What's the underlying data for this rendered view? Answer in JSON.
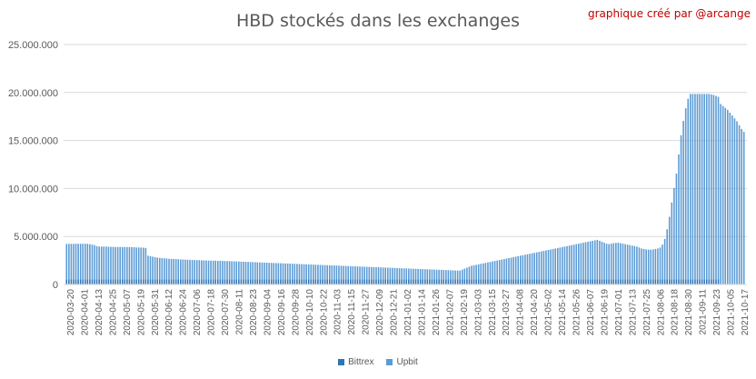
{
  "chart_data": {
    "type": "bar",
    "stacked": true,
    "title": "HBD stockés dans les exchanges",
    "credit": "graphique créé par @arcange",
    "ylim": [
      0,
      25000000
    ],
    "yticks": [
      "0",
      "5.000.000",
      "10.000.000",
      "15.000.000",
      "20.000.000",
      "25.000.000"
    ],
    "grid": true,
    "legend_position": "bottom",
    "x_tick_labels": [
      "2020-03-20",
      "2020-04-01",
      "2020-04-13",
      "2020-04-25",
      "2020-05-07",
      "2020-05-19",
      "2020-05-31",
      "2020-06-12",
      "2020-06-24",
      "2020-07-06",
      "2020-07-18",
      "2020-07-30",
      "2020-08-11",
      "2020-08-23",
      "2020-09-04",
      "2020-09-16",
      "2020-09-28",
      "2020-10-10",
      "2020-10-22",
      "2020-11-03",
      "2020-11-15",
      "2020-11-27",
      "2020-12-09",
      "2020-12-21",
      "2021-01-02",
      "2021-01-14",
      "2021-01-26",
      "2021-02-07",
      "2021-02-19",
      "2021-03-03",
      "2021-03-15",
      "2021-03-27",
      "2021-04-08",
      "2021-04-20",
      "2021-05-02",
      "2021-05-14",
      "2021-05-26",
      "2021-06-07",
      "2021-06-19",
      "2021-07-01",
      "2021-07-13",
      "2021-07-25",
      "2021-08-06",
      "2021-08-18",
      "2021-08-30",
      "2021-09-11",
      "2021-09-23",
      "2021-10-05",
      "2021-10-17"
    ],
    "series": [
      {
        "name": "Bittrex",
        "color": "#2e75b6",
        "values": [
          550000,
          550000,
          550000,
          550000,
          550000,
          550000,
          550000,
          550000,
          550000,
          550000,
          550000,
          550000,
          550000,
          550000,
          550000,
          550000,
          550000,
          550000,
          550000,
          550000,
          550000,
          550000,
          550000,
          550000,
          550000,
          550000,
          550000,
          550000,
          550000,
          550000,
          550000,
          550000,
          550000,
          550000,
          550000,
          550000,
          550000,
          550000,
          550000,
          550000,
          550000,
          550000,
          550000,
          550000,
          550000,
          550000,
          550000,
          550000,
          550000,
          550000,
          550000,
          550000,
          550000,
          550000,
          550000,
          550000,
          550000,
          550000,
          550000,
          550000,
          550000,
          550000,
          550000,
          550000,
          550000,
          550000,
          550000,
          550000,
          550000,
          550000,
          550000,
          550000,
          550000,
          550000,
          550000,
          550000,
          550000,
          550000,
          550000,
          550000,
          550000,
          550000,
          550000,
          550000,
          550000,
          550000,
          550000,
          550000,
          550000,
          550000,
          550000,
          550000,
          550000,
          550000,
          550000,
          550000,
          550000,
          550000,
          550000,
          550000,
          550000,
          550000,
          550000,
          550000,
          550000,
          550000,
          550000,
          550000,
          550000,
          550000,
          550000,
          550000,
          550000,
          550000,
          550000,
          550000,
          550000,
          550000,
          550000,
          550000,
          550000,
          550000,
          550000,
          550000,
          550000,
          550000,
          550000,
          550000,
          550000,
          550000,
          550000,
          550000,
          550000,
          550000,
          550000,
          550000,
          550000,
          550000,
          550000,
          550000,
          550000,
          550000,
          550000,
          550000,
          550000,
          550000,
          550000,
          550000,
          550000,
          550000,
          550000,
          550000,
          550000,
          550000,
          550000,
          550000,
          550000,
          550000,
          550000,
          550000,
          550000,
          550000,
          550000,
          550000,
          550000,
          550000,
          550000,
          550000,
          550000,
          550000,
          550000,
          550000,
          550000,
          550000,
          550000,
          550000,
          550000,
          550000,
          550000,
          550000,
          550000,
          550000,
          550000,
          550000,
          550000,
          550000,
          550000,
          550000,
          550000,
          550000,
          550000,
          550000,
          550000,
          550000,
          550000,
          550000,
          550000,
          550000,
          550000,
          550000,
          550000,
          550000,
          550000,
          550000,
          550000,
          550000,
          550000,
          550000,
          550000,
          550000,
          550000,
          550000,
          550000,
          550000,
          550000,
          550000,
          550000,
          550000,
          550000,
          550000,
          550000,
          550000,
          550000,
          550000,
          550000,
          550000,
          550000,
          550000,
          550000,
          550000,
          550000,
          550000,
          550000,
          550000,
          550000,
          550000,
          550000,
          550000,
          550000,
          550000,
          550000,
          550000,
          550000,
          550000,
          550000,
          550000,
          550000,
          550000,
          550000,
          550000,
          550000,
          550000,
          550000,
          550000,
          550000,
          550000,
          550000,
          550000,
          550000,
          550000,
          550000,
          550000,
          550000,
          550000,
          550000,
          550000,
          550000,
          550000,
          550000,
          550000,
          550000,
          550000,
          550000,
          550000,
          550000,
          550000,
          550000,
          550000,
          550000,
          550000,
          550000
        ]
      },
      {
        "name": "Upbit",
        "color": "#5b9bd5",
        "values": [
          3680000,
          3680000,
          3680000,
          3680000,
          3690000,
          3690000,
          3690000,
          3690000,
          3690000,
          3690000,
          3650000,
          3600000,
          3550000,
          3450000,
          3400000,
          3400000,
          3400000,
          3400000,
          3380000,
          3370000,
          3370000,
          3360000,
          3360000,
          3350000,
          3350000,
          3350000,
          3350000,
          3350000,
          3340000,
          3340000,
          3300000,
          3300000,
          3300000,
          3280000,
          3250000,
          2450000,
          2400000,
          2350000,
          2300000,
          2250000,
          2220000,
          2200000,
          2180000,
          2150000,
          2130000,
          2120000,
          2110000,
          2100000,
          2080000,
          2060000,
          2050000,
          2040000,
          2030000,
          2020000,
          2000000,
          2000000,
          1990000,
          1980000,
          1970000,
          1960000,
          1950000,
          1940000,
          1940000,
          1930000,
          1930000,
          1920000,
          1920000,
          1910000,
          1900000,
          1890000,
          1880000,
          1870000,
          1860000,
          1850000,
          1840000,
          1830000,
          1820000,
          1810000,
          1800000,
          1790000,
          1780000,
          1770000,
          1760000,
          1750000,
          1740000,
          1730000,
          1720000,
          1710000,
          1700000,
          1690000,
          1680000,
          1670000,
          1660000,
          1650000,
          1640000,
          1630000,
          1620000,
          1610000,
          1600000,
          1590000,
          1580000,
          1570000,
          1560000,
          1550000,
          1540000,
          1530000,
          1520000,
          1510000,
          1500000,
          1490000,
          1480000,
          1470000,
          1460000,
          1450000,
          1440000,
          1430000,
          1420000,
          1410000,
          1400000,
          1390000,
          1380000,
          1370000,
          1360000,
          1350000,
          1340000,
          1330000,
          1320000,
          1310000,
          1300000,
          1290000,
          1280000,
          1270000,
          1260000,
          1250000,
          1240000,
          1230000,
          1220000,
          1210000,
          1200000,
          1190000,
          1180000,
          1170000,
          1160000,
          1150000,
          1140000,
          1130000,
          1120000,
          1110000,
          1100000,
          1090000,
          1080000,
          1070000,
          1060000,
          1050000,
          1040000,
          1030000,
          1020000,
          1010000,
          1000000,
          990000,
          980000,
          970000,
          960000,
          950000,
          940000,
          930000,
          920000,
          910000,
          900000,
          900000,
          1000000,
          1100000,
          1200000,
          1300000,
          1400000,
          1450000,
          1500000,
          1550000,
          1600000,
          1650000,
          1700000,
          1750000,
          1800000,
          1850000,
          1900000,
          1950000,
          2000000,
          2050000,
          2100000,
          2150000,
          2200000,
          2250000,
          2300000,
          2350000,
          2400000,
          2450000,
          2500000,
          2550000,
          2600000,
          2650000,
          2700000,
          2750000,
          2800000,
          2850000,
          2900000,
          2950000,
          3000000,
          3050000,
          3100000,
          3150000,
          3200000,
          3250000,
          3300000,
          3350000,
          3400000,
          3450000,
          3500000,
          3550000,
          3600000,
          3650000,
          3700000,
          3750000,
          3800000,
          3850000,
          3900000,
          3950000,
          4000000,
          4050000,
          4100000,
          4000000,
          3900000,
          3800000,
          3700000,
          3650000,
          3700000,
          3750000,
          3780000,
          3800000,
          3750000,
          3700000,
          3650000,
          3600000,
          3550000,
          3500000,
          3450000,
          3400000,
          3300000,
          3200000,
          3150000,
          3100000,
          3080000,
          3080000,
          3100000,
          3150000,
          3200000,
          3300000,
          3600000,
          4200000,
          5200000,
          6500000,
          8000000,
          9500000,
          11000000,
          13000000,
          15000000,
          16500000,
          17800000,
          18800000,
          19300000,
          19300000,
          19300000,
          19300000,
          19300000,
          19300000,
          19300000,
          19300000,
          19300000,
          19250000,
          19200000,
          19100000,
          19000000,
          18800000,
          18600000,
          18400000,
          18200000,
          17900000,
          17600000,
          17300000,
          17000000,
          16600000,
          16200000,
          15900000
        ]
      }
    ]
  }
}
